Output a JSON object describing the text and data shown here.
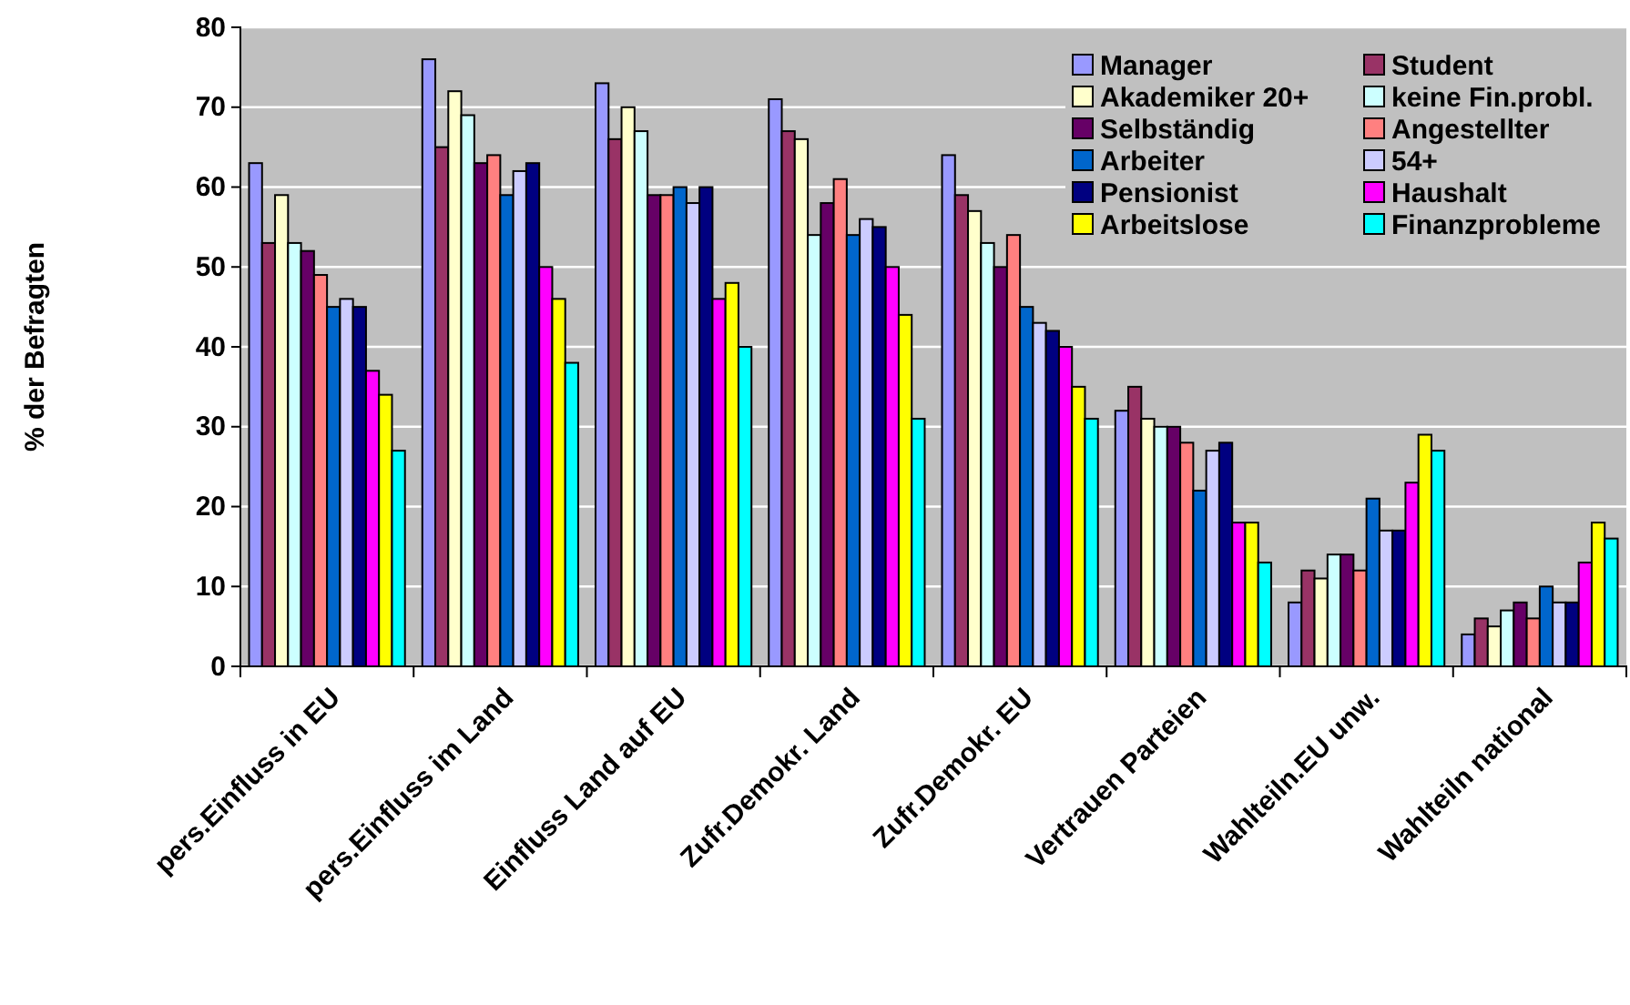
{
  "chart_data": {
    "type": "bar",
    "ylabel": "% der Befragten",
    "categories": [
      "pers.Einfluss in EU",
      "pers.Einfluss im Land",
      "Einfluss Land auf EU",
      "Zufr.Demokr. Land",
      "Zufr.Demokr. EU",
      "Vertrauen Parteien",
      "Wahlteiln.EU unw.",
      "Wahlteiln national"
    ],
    "series": [
      {
        "name": "Manager",
        "color": "#9999ff",
        "values": [
          63,
          76,
          73,
          71,
          64,
          32,
          8,
          4
        ]
      },
      {
        "name": "Student",
        "color": "#993366",
        "values": [
          53,
          65,
          66,
          67,
          59,
          35,
          12,
          6
        ]
      },
      {
        "name": "Akademiker 20+",
        "color": "#ffffcc",
        "values": [
          59,
          72,
          70,
          66,
          57,
          31,
          11,
          5
        ]
      },
      {
        "name": "keine Fin.probl.",
        "color": "#ccffff",
        "values": [
          53,
          69,
          67,
          54,
          53,
          30,
          14,
          7
        ]
      },
      {
        "name": "Selbständig",
        "color": "#660066",
        "values": [
          52,
          63,
          59,
          58,
          50,
          30,
          14,
          8
        ]
      },
      {
        "name": "Angestellter",
        "color": "#ff8080",
        "values": [
          49,
          64,
          59,
          61,
          54,
          28,
          12,
          6
        ]
      },
      {
        "name": "Arbeiter",
        "color": "#0066cc",
        "values": [
          45,
          59,
          60,
          54,
          45,
          22,
          21,
          10
        ]
      },
      {
        "name": "54+",
        "color": "#ccccff",
        "values": [
          46,
          62,
          58,
          56,
          43,
          27,
          17,
          8
        ]
      },
      {
        "name": "Pensionist",
        "color": "#000080",
        "values": [
          45,
          63,
          60,
          55,
          42,
          28,
          17,
          8
        ]
      },
      {
        "name": "Haushalt",
        "color": "#ff00ff",
        "values": [
          37,
          50,
          46,
          50,
          40,
          18,
          23,
          13
        ]
      },
      {
        "name": "Arbeitslose",
        "color": "#ffff00",
        "values": [
          34,
          46,
          48,
          44,
          35,
          18,
          29,
          18
        ]
      },
      {
        "name": "Finanzprobleme",
        "color": "#00ffff",
        "values": [
          27,
          38,
          40,
          31,
          31,
          13,
          27,
          16
        ]
      }
    ],
    "ylim": [
      0,
      80
    ],
    "yticks": [
      0,
      10,
      20,
      30,
      40,
      50,
      60,
      70,
      80
    ],
    "grid": "y",
    "legend": "top right"
  }
}
